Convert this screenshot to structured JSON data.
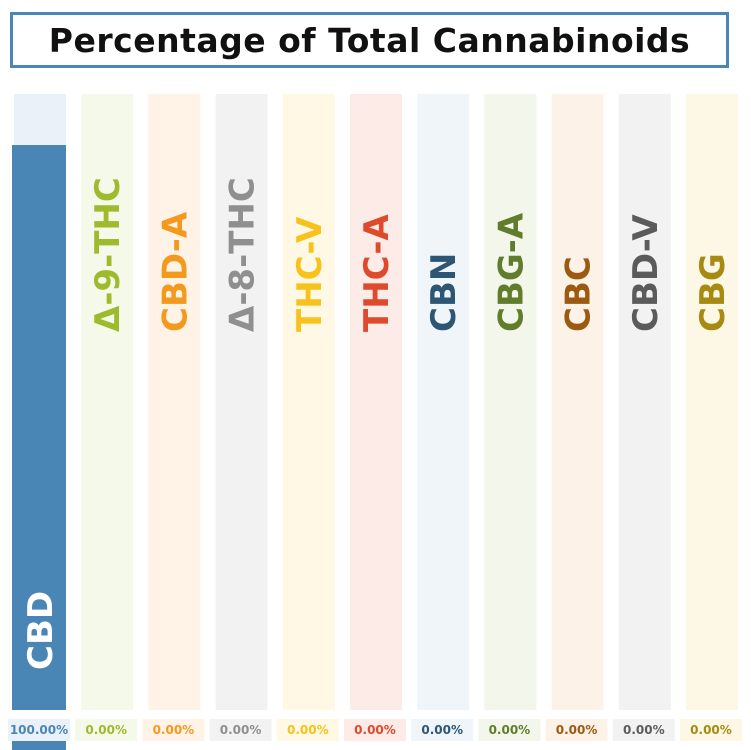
{
  "title": "Percentage of Total Cannabinoids",
  "chart_data": {
    "type": "bar",
    "title": "Percentage of Total Cannabinoids",
    "xlabel": "",
    "ylabel": "",
    "ylim": [
      0,
      100
    ],
    "grid": false,
    "legend": "none",
    "categories": [
      "CBD",
      "Δ-9-THC",
      "CBD-A",
      "Δ-8-THC",
      "THC-V",
      "THC-A",
      "CBN",
      "CBG-A",
      "CBC",
      "CBD-V",
      "CBG"
    ],
    "values": [
      100.0,
      0.0,
      0.0,
      0.0,
      0.0,
      0.0,
      0.0,
      0.0,
      0.0,
      0.0,
      0.0
    ],
    "value_labels": [
      "100.00%",
      "0.00%",
      "0.00%",
      "0.00%",
      "0.00%",
      "0.00%",
      "0.00%",
      "0.00%",
      "0.00%",
      "0.00%",
      "0.00%"
    ],
    "colors": [
      "#4a86b5",
      "#9dbb2c",
      "#f39a1e",
      "#8f8f8f",
      "#f6c21b",
      "#dd4a2c",
      "#2d5574",
      "#617d2c",
      "#9b5a10",
      "#5b5b5b",
      "#a68a12"
    ],
    "track_colors": [
      "#eaf1f9",
      "#f5f9ea",
      "#fef3e6",
      "#f2f2f2",
      "#fef8e5",
      "#fcebe6",
      "#f0f5fa",
      "#f3f6ea",
      "#fdf2e8",
      "#f2f2f2",
      "#fdf8e6"
    ]
  }
}
